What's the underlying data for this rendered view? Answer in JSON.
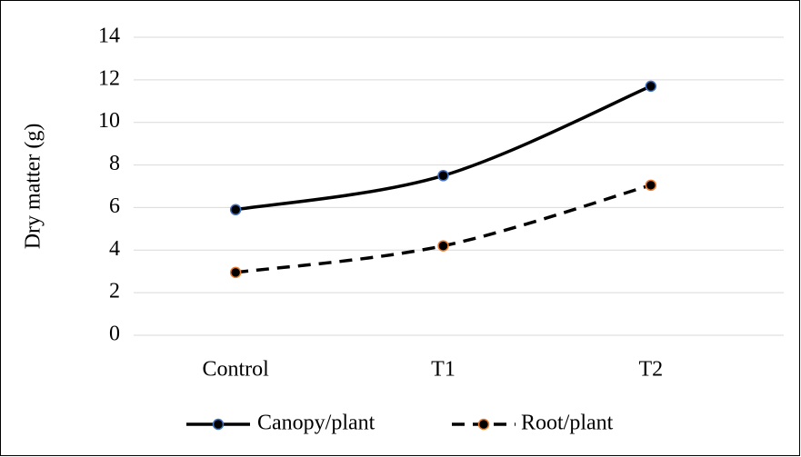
{
  "chart_data": {
    "type": "line",
    "y_label": "Dry matter (g)",
    "categories": [
      "Control",
      "T1",
      "T2"
    ],
    "series": [
      {
        "name": "Canopy/plant",
        "color": "#000000",
        "marker_edge": "#4472c4",
        "dash": "solid",
        "values": [
          5.9,
          7.5,
          11.7
        ]
      },
      {
        "name": "Root/plant",
        "color": "#000000",
        "marker_edge": "#ed7d31",
        "dash": "dashed",
        "values": [
          2.95,
          4.2,
          7.05
        ]
      }
    ],
    "ylim": [
      0,
      14
    ],
    "yticks": [
      0,
      2,
      4,
      6,
      8,
      10,
      12,
      14
    ],
    "grid": true,
    "smooth": true,
    "legend": "bottom"
  }
}
